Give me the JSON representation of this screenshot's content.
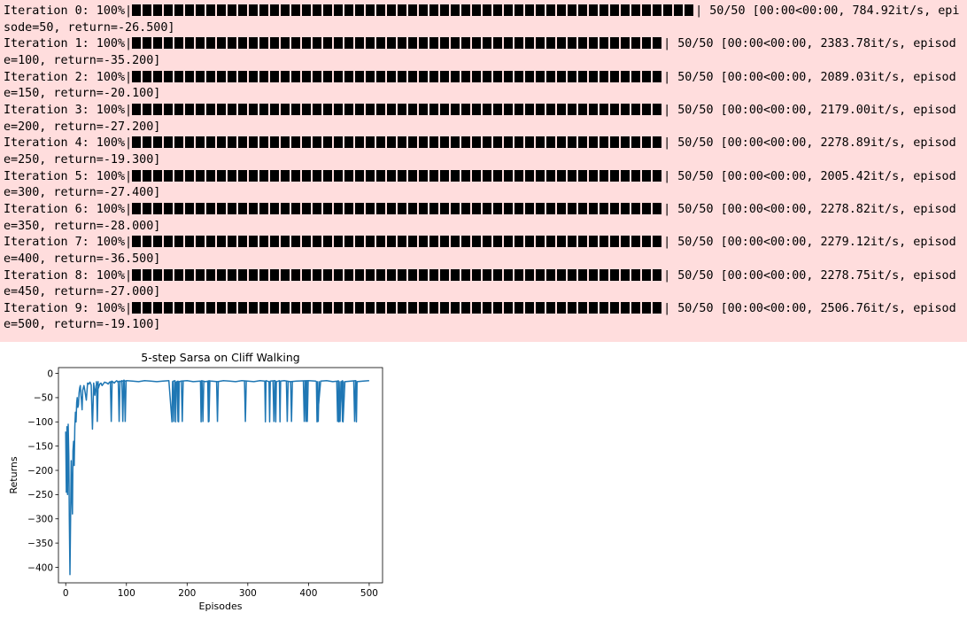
{
  "output_cell": {
    "background_color": "#ffdddd",
    "lines": [
      {
        "label": "Iteration 0: 100%|",
        "blocks": 53,
        "tail": "| 50/50 [00:00<00:00, 784.92it/s, epi",
        "wrap": "sode=50, return=-26.500]"
      },
      {
        "label": "Iteration 1: 100%|",
        "blocks": 50,
        "tail": "| 50/50 [00:00<00:00, 2383.78it/s, episod",
        "wrap": "e=100, return=-35.200]"
      },
      {
        "label": "Iteration 2: 100%|",
        "blocks": 50,
        "tail": "| 50/50 [00:00<00:00, 2089.03it/s, episod",
        "wrap": "e=150, return=-20.100]"
      },
      {
        "label": "Iteration 3: 100%|",
        "blocks": 50,
        "tail": "| 50/50 [00:00<00:00, 2179.00it/s, episod",
        "wrap": "e=200, return=-27.200]"
      },
      {
        "label": "Iteration 4: 100%|",
        "blocks": 50,
        "tail": "| 50/50 [00:00<00:00, 2278.89it/s, episod",
        "wrap": "e=250, return=-19.300]"
      },
      {
        "label": "Iteration 5: 100%|",
        "blocks": 50,
        "tail": "| 50/50 [00:00<00:00, 2005.42it/s, episod",
        "wrap": "e=300, return=-27.400]"
      },
      {
        "label": "Iteration 6: 100%|",
        "blocks": 50,
        "tail": "| 50/50 [00:00<00:00, 2278.82it/s, episod",
        "wrap": "e=350, return=-28.000]"
      },
      {
        "label": "Iteration 7: 100%|",
        "blocks": 50,
        "tail": "| 50/50 [00:00<00:00, 2279.12it/s, episod",
        "wrap": "e=400, return=-36.500]"
      },
      {
        "label": "Iteration 8: 100%|",
        "blocks": 50,
        "tail": "| 50/50 [00:00<00:00, 2278.75it/s, episod",
        "wrap": "e=450, return=-27.000]"
      },
      {
        "label": "Iteration 9: 100%|",
        "blocks": 50,
        "tail": "| 50/50 [00:00<00:00, 2506.76it/s, episod",
        "wrap": "e=500, return=-19.100]"
      }
    ]
  },
  "chart_data": {
    "type": "line",
    "title": "5-step Sarsa on Cliff Walking",
    "xlabel": "Episodes",
    "ylabel": "Returns",
    "xlim": [
      -12,
      522
    ],
    "ylim": [
      -432,
      12
    ],
    "xticks": [
      0,
      100,
      200,
      300,
      400,
      500
    ],
    "yticks": [
      0,
      -50,
      -100,
      -150,
      -200,
      -250,
      -300,
      -350,
      -400
    ],
    "grid": false,
    "line_color": "#1f77b4",
    "series": [
      {
        "name": "returns",
        "x": [
          0,
          1,
          2,
          3,
          4,
          5,
          6,
          7,
          8,
          9,
          10,
          11,
          12,
          13,
          14,
          15,
          16,
          17,
          18,
          19,
          20,
          21,
          22,
          23,
          24,
          25,
          26,
          27,
          28,
          30,
          32,
          34,
          36,
          38,
          40,
          42,
          44,
          46,
          48,
          50,
          52,
          54,
          56,
          58,
          60,
          64,
          68,
          70,
          72,
          74,
          76,
          78,
          80,
          82,
          84,
          86,
          88,
          90,
          92,
          94,
          96,
          98,
          100,
          110,
          120,
          130,
          140,
          150,
          160,
          170,
          175,
          176,
          177,
          180,
          181,
          182,
          185,
          186,
          187,
          190,
          200,
          210,
          222,
          223,
          224,
          230,
          234,
          235,
          236,
          240,
          250,
          260,
          270,
          280,
          290,
          300,
          310,
          320,
          328,
          329,
          330,
          335,
          336,
          337,
          345,
          346,
          347,
          350,
          352,
          353,
          354,
          360,
          370,
          380,
          400,
          412,
          413,
          414,
          420,
          430,
          440,
          448,
          449,
          450,
          455,
          456,
          457,
          460,
          470,
          478,
          479,
          480,
          490,
          500
        ],
        "y": [
          -120,
          -245,
          -110,
          -250,
          -105,
          -170,
          -300,
          -415,
          -300,
          -180,
          -250,
          -290,
          -160,
          -140,
          -190,
          -110,
          -80,
          -100,
          -60,
          -50,
          -70,
          -65,
          -40,
          -30,
          -25,
          -45,
          -55,
          -75,
          -35,
          -25,
          -40,
          -55,
          -20,
          -22,
          -18,
          -24,
          -115,
          -20,
          -45,
          -25,
          -20,
          -30,
          -22,
          -20,
          -25,
          -18,
          -20,
          -22,
          -18,
          -20,
          -16,
          -18,
          -20,
          -17,
          -15,
          -18,
          -16,
          -17,
          -15,
          -16,
          -14,
          -16,
          -15,
          -16,
          -17,
          -15,
          -16,
          -17,
          -16,
          -15,
          -100,
          -17,
          -16,
          -15,
          -100,
          -18,
          -16,
          -100,
          -17,
          -16,
          -15,
          -17,
          -16,
          -100,
          -15,
          -17,
          -16,
          -100,
          -15,
          -16,
          -17,
          -15,
          -16,
          -17,
          -15,
          -16,
          -17,
          -15,
          -16,
          -100,
          -15,
          -17,
          -100,
          -16,
          -15,
          -100,
          -17,
          -16,
          -15,
          -100,
          -16,
          -15,
          -17,
          -16,
          -15,
          -16,
          -17,
          -100,
          -16,
          -15,
          -17,
          -16,
          -15,
          -100,
          -16,
          -15,
          -100,
          -17,
          -16,
          -15,
          -100,
          -17,
          -16,
          -15
        ]
      }
    ],
    "spikes": [
      {
        "x": 52,
        "y": -100
      },
      {
        "x": 75,
        "y": -100
      },
      {
        "x": 88,
        "y": -100
      },
      {
        "x": 94,
        "y": -100
      },
      {
        "x": 98,
        "y": -100
      },
      {
        "x": 178,
        "y": -100
      },
      {
        "x": 185,
        "y": -100
      },
      {
        "x": 192,
        "y": -100
      },
      {
        "x": 226,
        "y": -100
      },
      {
        "x": 236,
        "y": -100
      },
      {
        "x": 250,
        "y": -100
      },
      {
        "x": 296,
        "y": -100
      },
      {
        "x": 343,
        "y": -100
      },
      {
        "x": 365,
        "y": -100
      },
      {
        "x": 372,
        "y": -100
      },
      {
        "x": 393,
        "y": -100
      },
      {
        "x": 396,
        "y": -100
      },
      {
        "x": 398,
        "y": -100
      },
      {
        "x": 416,
        "y": -100
      },
      {
        "x": 448,
        "y": -100
      },
      {
        "x": 452,
        "y": -100
      },
      {
        "x": 456,
        "y": -100
      },
      {
        "x": 476,
        "y": -100
      }
    ]
  }
}
